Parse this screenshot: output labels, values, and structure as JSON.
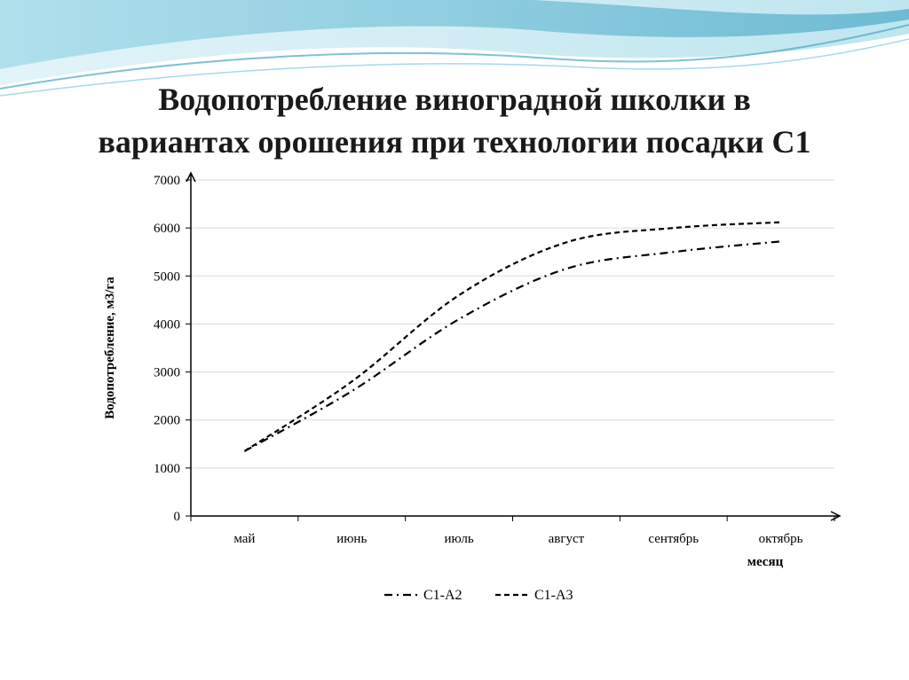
{
  "slide": {
    "title_line1": "Водопотребление виноградной школки в",
    "title_line2": "вариантах орошения при технологии посадки С1"
  },
  "chart_data": {
    "type": "line",
    "xlabel": "месяц",
    "ylabel": "Водопотребление, м3/га",
    "categories": [
      "май",
      "июнь",
      "июль",
      "август",
      "сентябрь",
      "октябрь"
    ],
    "ylim": [
      0,
      7000
    ],
    "yticks": [
      0,
      1000,
      2000,
      3000,
      4000,
      5000,
      6000,
      7000
    ],
    "grid": true,
    "legend_position": "bottom",
    "series": [
      {
        "name": "С1-А2",
        "style": "dash-dot",
        "values": [
          1350,
          2600,
          4100,
          5150,
          5500,
          5720
        ]
      },
      {
        "name": "С1-А3",
        "style": "dashed",
        "values": [
          1350,
          2800,
          4600,
          5700,
          6000,
          6120
        ]
      }
    ]
  },
  "colors": {
    "banner_blue": "#7cc6dd",
    "banner_light": "#c9eaf2",
    "gridline": "#cfe0ea",
    "series_stroke": "#000000"
  }
}
